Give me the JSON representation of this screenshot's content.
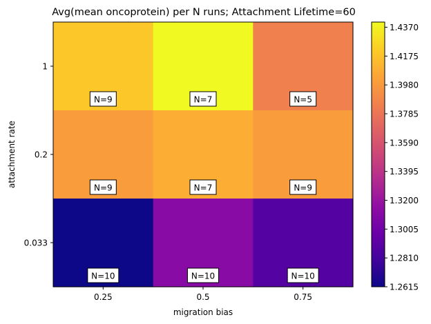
{
  "chart_data": {
    "type": "heatmap",
    "title": "Avg(mean oncoprotein) per N runs; Attachment Lifetime=60",
    "xlabel": "migration bias",
    "ylabel": "attachment rate",
    "x_categories": [
      "0.25",
      "0.5",
      "0.75"
    ],
    "y_categories": [
      "1",
      "0.2",
      "0.033"
    ],
    "values": [
      [
        1.4195,
        1.4405,
        1.3845
      ],
      [
        1.4,
        1.408,
        1.4
      ],
      [
        1.2615,
        1.312,
        1.288
      ]
    ],
    "annotations": [
      [
        "N=9",
        "N=7",
        "N=5"
      ],
      [
        "N=9",
        "N=7",
        "N=9"
      ],
      [
        "N=10",
        "N=10",
        "N=10"
      ]
    ],
    "colormap": "plasma",
    "colorbar": {
      "vmin": 1.2615,
      "vmax": 1.4405,
      "ticks": [
        "1.2615",
        "1.2810",
        "1.3005",
        "1.3200",
        "1.3395",
        "1.3590",
        "1.3785",
        "1.3980",
        "1.4175",
        "1.4370"
      ]
    }
  }
}
